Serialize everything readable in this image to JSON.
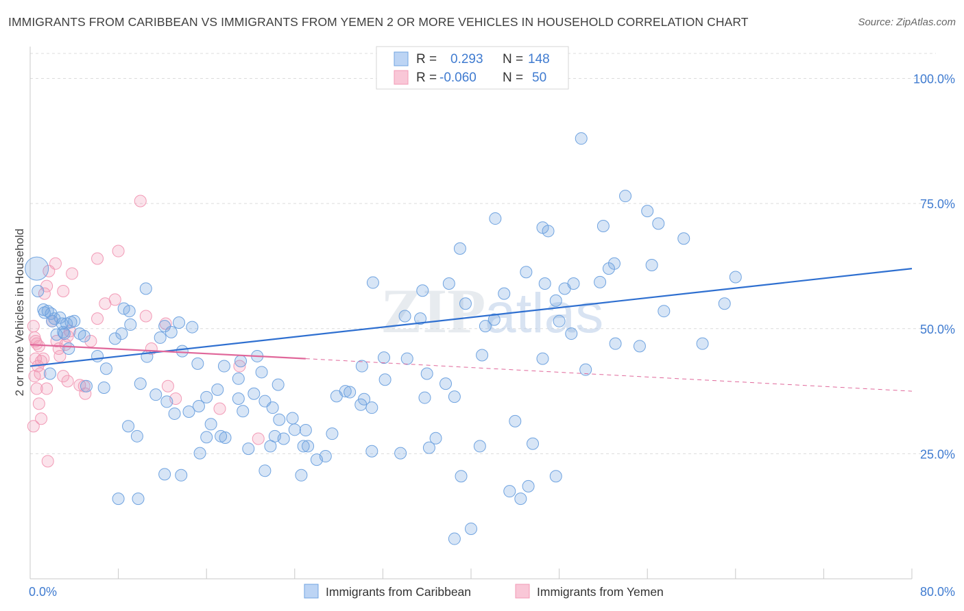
{
  "title": "IMMIGRANTS FROM CARIBBEAN VS IMMIGRANTS FROM YEMEN 2 OR MORE VEHICLES IN HOUSEHOLD CORRELATION CHART",
  "source": "Source: ZipAtlas.com",
  "watermark": {
    "part1": "ZIP",
    "part2": "atlas"
  },
  "legend_box": {
    "rows": [
      {
        "r_label": "R =",
        "r_value": "0.293",
        "n_label": "N =",
        "n_value": "148"
      },
      {
        "r_label": "R =",
        "r_value": "-0.060",
        "n_label": "N =",
        "n_value": "50"
      }
    ]
  },
  "bottom_legend": [
    "Immigrants from Caribbean",
    "Immigrants from Yemen"
  ],
  "chart_data": {
    "type": "scatter",
    "xlabel": "",
    "ylabel": "2 or more Vehicles in Household",
    "xlim": [
      0,
      80
    ],
    "ylim": [
      0,
      105
    ],
    "x_tick_labels": [
      {
        "value": 0,
        "label": "0.0%"
      },
      {
        "value": 80,
        "label": "80.0%"
      }
    ],
    "y_tick_labels": [
      {
        "value": 25,
        "label": "25.0%"
      },
      {
        "value": 50,
        "label": "50.0%"
      },
      {
        "value": 75,
        "label": "75.0%"
      },
      {
        "value": 100,
        "label": "100.0%"
      }
    ],
    "colors": {
      "caribbean": "#6fa3e0",
      "caribbean_line": "#2e6fd0",
      "yemen": "#f29ab6",
      "yemen_line": "#e0679a",
      "axis_text": "#3f7bd0"
    },
    "series": [
      {
        "name": "Immigrants from Caribbean",
        "R": 0.293,
        "N": 148,
        "trend": {
          "x": [
            0,
            80
          ],
          "y": [
            42.5,
            62.0
          ],
          "style": "solid"
        },
        "points": [
          [
            0.6,
            62.0
          ],
          [
            0.7,
            57.5
          ],
          [
            1.2,
            53.8
          ],
          [
            1.3,
            53.2
          ],
          [
            1.6,
            53.5
          ],
          [
            1.9,
            53.0
          ],
          [
            2.0,
            51.5
          ],
          [
            2.2,
            52.0
          ],
          [
            2.7,
            52.2
          ],
          [
            2.9,
            51.0
          ],
          [
            3.1,
            49.0
          ],
          [
            3.3,
            51.0
          ],
          [
            3.7,
            51.3
          ],
          [
            4.0,
            51.5
          ],
          [
            4.5,
            49.0
          ],
          [
            2.4,
            48.8
          ],
          [
            3.0,
            49.3
          ],
          [
            4.9,
            48.5
          ],
          [
            1.8,
            41.0
          ],
          [
            3.5,
            46.0
          ],
          [
            5.1,
            38.5
          ],
          [
            6.1,
            44.5
          ],
          [
            6.7,
            38.2
          ],
          [
            6.9,
            42.0
          ],
          [
            7.7,
            48.0
          ],
          [
            8.3,
            49.0
          ],
          [
            8.5,
            54.0
          ],
          [
            9.0,
            53.5
          ],
          [
            9.1,
            50.8
          ],
          [
            10.5,
            58.0
          ],
          [
            11.8,
            48.2
          ],
          [
            12.2,
            50.5
          ],
          [
            12.8,
            49.3
          ],
          [
            13.5,
            51.2
          ],
          [
            14.7,
            50.3
          ],
          [
            13.8,
            45.5
          ],
          [
            15.2,
            43.0
          ],
          [
            10.6,
            44.4
          ],
          [
            10.0,
            39.0
          ],
          [
            11.4,
            36.8
          ],
          [
            12.4,
            35.4
          ],
          [
            13.1,
            33.0
          ],
          [
            14.4,
            33.4
          ],
          [
            15.3,
            34.5
          ],
          [
            16.0,
            36.3
          ],
          [
            17.0,
            37.8
          ],
          [
            16.4,
            30.9
          ],
          [
            17.3,
            28.5
          ],
          [
            17.6,
            42.5
          ],
          [
            18.9,
            36.0
          ],
          [
            19.3,
            33.5
          ],
          [
            20.3,
            37.0
          ],
          [
            21.3,
            35.5
          ],
          [
            22.5,
            38.8
          ],
          [
            22.6,
            31.8
          ],
          [
            21.8,
            26.5
          ],
          [
            26.8,
            24.5
          ],
          [
            26.0,
            23.8
          ],
          [
            29.0,
            37.3
          ],
          [
            30.3,
            35.9
          ],
          [
            30.0,
            34.8
          ],
          [
            31.0,
            34.2
          ],
          [
            32.2,
            39.8
          ],
          [
            30.1,
            42.5
          ],
          [
            32.1,
            44.2
          ],
          [
            34.2,
            44.0
          ],
          [
            36.0,
            41.0
          ],
          [
            37.7,
            39.0
          ],
          [
            38.5,
            36.4
          ],
          [
            34.0,
            52.5
          ],
          [
            31.1,
            59.2
          ],
          [
            35.6,
            57.6
          ],
          [
            35.4,
            52.0
          ],
          [
            38.0,
            59.0
          ],
          [
            41.0,
            44.7
          ],
          [
            42.1,
            51.8
          ],
          [
            41.3,
            50.5
          ],
          [
            43.0,
            57.0
          ],
          [
            39.0,
            66.0
          ],
          [
            39.5,
            55.0
          ],
          [
            42.2,
            72.0
          ],
          [
            45.0,
            61.3
          ],
          [
            46.5,
            70.2
          ],
          [
            47.0,
            69.5
          ],
          [
            46.7,
            59.0
          ],
          [
            47.7,
            55.6
          ],
          [
            46.5,
            44.0
          ],
          [
            43.5,
            17.5
          ],
          [
            44.5,
            16.0
          ],
          [
            40.8,
            26.5
          ],
          [
            36.8,
            28.1
          ],
          [
            27.4,
            29.0
          ],
          [
            25.0,
            29.7
          ],
          [
            24.0,
            29.8
          ],
          [
            23.8,
            32.1
          ],
          [
            22.2,
            28.5
          ],
          [
            22.0,
            34.2
          ],
          [
            21.0,
            41.3
          ],
          [
            20.6,
            44.5
          ],
          [
            19.1,
            43.5
          ],
          [
            18.9,
            40.0
          ],
          [
            17.7,
            28.2
          ],
          [
            16.0,
            28.3
          ],
          [
            15.4,
            25.1
          ],
          [
            13.7,
            20.7
          ],
          [
            12.2,
            20.9
          ],
          [
            9.8,
            16.0
          ],
          [
            8.0,
            16.0
          ],
          [
            8.9,
            30.5
          ],
          [
            9.7,
            28.5
          ],
          [
            19.8,
            26.0
          ],
          [
            21.3,
            21.6
          ],
          [
            24.6,
            20.7
          ],
          [
            24.8,
            26.5
          ],
          [
            23.0,
            28.0
          ],
          [
            25.2,
            26.5
          ],
          [
            27.8,
            36.5
          ],
          [
            28.6,
            37.5
          ],
          [
            31.0,
            25.5
          ],
          [
            33.6,
            25.1
          ],
          [
            35.8,
            36.2
          ],
          [
            36.2,
            26.2
          ],
          [
            38.5,
            8.0
          ],
          [
            40.0,
            10.0
          ],
          [
            39.1,
            20.5
          ],
          [
            44.0,
            31.5
          ],
          [
            45.6,
            27.0
          ],
          [
            47.7,
            20.5
          ],
          [
            45.2,
            18.5
          ],
          [
            50.0,
            88.0
          ],
          [
            54.0,
            76.5
          ],
          [
            56.0,
            73.5
          ],
          [
            57.0,
            71.0
          ],
          [
            52.0,
            70.5
          ],
          [
            56.4,
            62.7
          ],
          [
            51.7,
            59.3
          ],
          [
            49.3,
            59.0
          ],
          [
            48.5,
            58.0
          ],
          [
            48.0,
            51.5
          ],
          [
            49.1,
            49.0
          ],
          [
            50.4,
            41.8
          ],
          [
            53.1,
            47.0
          ],
          [
            55.3,
            46.5
          ],
          [
            57.5,
            53.5
          ],
          [
            52.5,
            62.0
          ],
          [
            53.0,
            63.0
          ],
          [
            64.0,
            60.3
          ],
          [
            63.0,
            55.0
          ],
          [
            61.0,
            47.0
          ],
          [
            59.3,
            68.0
          ]
        ]
      },
      {
        "name": "Immigrants from Yemen",
        "R": -0.06,
        "N": 50,
        "trend": {
          "x": [
            0,
            25
          ],
          "y": [
            46.8,
            44.0
          ],
          "dashed_to": [
            80,
            37.5
          ],
          "style": "solid-then-dashed"
        },
        "points": [
          [
            0.3,
            50.5
          ],
          [
            0.4,
            48.2
          ],
          [
            0.5,
            47.5
          ],
          [
            0.6,
            47.0
          ],
          [
            0.8,
            46.5
          ],
          [
            0.5,
            44.0
          ],
          [
            0.7,
            42.5
          ],
          [
            0.9,
            41.0
          ],
          [
            1.0,
            43.5
          ],
          [
            1.2,
            44.0
          ],
          [
            0.4,
            40.5
          ],
          [
            0.6,
            38.0
          ],
          [
            0.8,
            35.0
          ],
          [
            1.0,
            32.0
          ],
          [
            0.3,
            30.5
          ],
          [
            1.5,
            38.0
          ],
          [
            1.6,
            23.5
          ],
          [
            1.3,
            57.0
          ],
          [
            1.5,
            58.5
          ],
          [
            1.7,
            61.5
          ],
          [
            2.3,
            63.0
          ],
          [
            3.0,
            57.5
          ],
          [
            3.8,
            61.0
          ],
          [
            2.0,
            51.5
          ],
          [
            2.4,
            47.5
          ],
          [
            2.6,
            46.0
          ],
          [
            2.7,
            44.5
          ],
          [
            3.2,
            46.8
          ],
          [
            3.4,
            48.5
          ],
          [
            3.6,
            49.5
          ],
          [
            3.0,
            40.5
          ],
          [
            3.4,
            39.5
          ],
          [
            4.5,
            38.7
          ],
          [
            4.9,
            38.5
          ],
          [
            5.0,
            37.0
          ],
          [
            5.5,
            47.5
          ],
          [
            6.1,
            52.0
          ],
          [
            6.8,
            55.0
          ],
          [
            7.7,
            55.8
          ],
          [
            8.0,
            65.5
          ],
          [
            6.1,
            64.0
          ],
          [
            10.0,
            75.5
          ],
          [
            10.5,
            52.5
          ],
          [
            12.3,
            51.0
          ],
          [
            11.0,
            46.0
          ],
          [
            12.5,
            38.5
          ],
          [
            13.2,
            36.0
          ],
          [
            17.2,
            34.0
          ],
          [
            19.0,
            42.5
          ],
          [
            20.7,
            28.0
          ]
        ]
      }
    ]
  }
}
